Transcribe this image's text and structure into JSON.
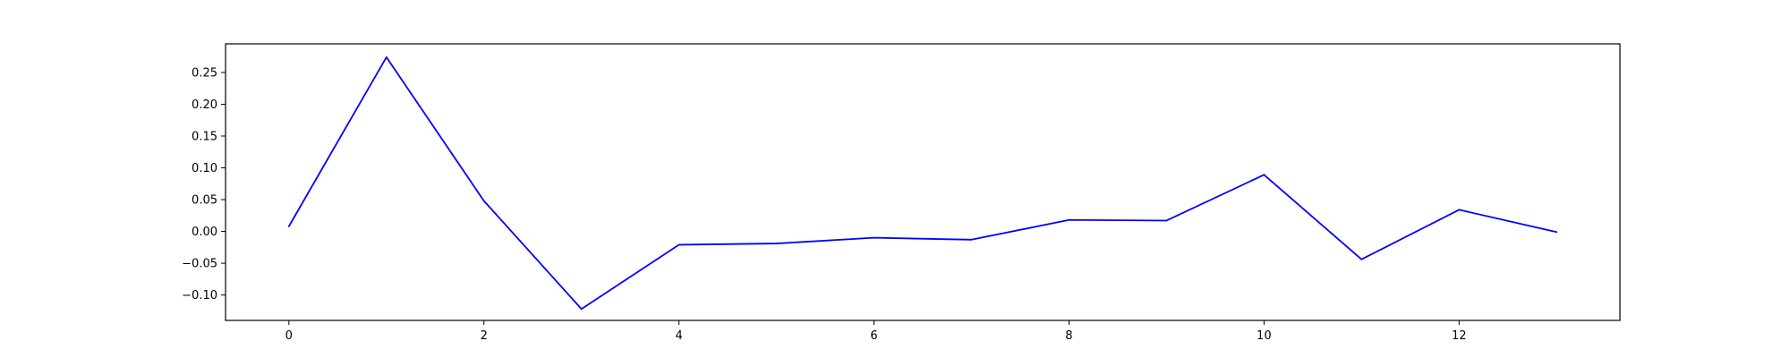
{
  "chart_data": {
    "type": "line",
    "title": "",
    "xlabel": "",
    "ylabel": "",
    "xlim": [
      -0.65,
      13.65
    ],
    "ylim": [
      -0.14,
      0.295
    ],
    "x_ticks": [
      0,
      2,
      4,
      6,
      8,
      10,
      12
    ],
    "x_tick_labels": [
      "0",
      "2",
      "4",
      "6",
      "8",
      "10",
      "12"
    ],
    "y_ticks": [
      -0.1,
      -0.05,
      0.0,
      0.05,
      0.1,
      0.15,
      0.2,
      0.25
    ],
    "y_tick_labels": [
      "−0.10",
      "−0.05",
      "0.00",
      "0.05",
      "0.10",
      "0.15",
      "0.20",
      "0.25"
    ],
    "grid": false,
    "legend": false,
    "series": [
      {
        "color": "#0000ff",
        "x": [
          0,
          1,
          2,
          3,
          4,
          5,
          6,
          7,
          8,
          9,
          10,
          11,
          12,
          13
        ],
        "y": [
          0.008,
          0.274,
          0.048,
          -0.122,
          -0.021,
          -0.019,
          -0.01,
          -0.013,
          0.018,
          0.017,
          0.089,
          -0.044,
          0.034,
          -0.001
        ]
      }
    ]
  }
}
